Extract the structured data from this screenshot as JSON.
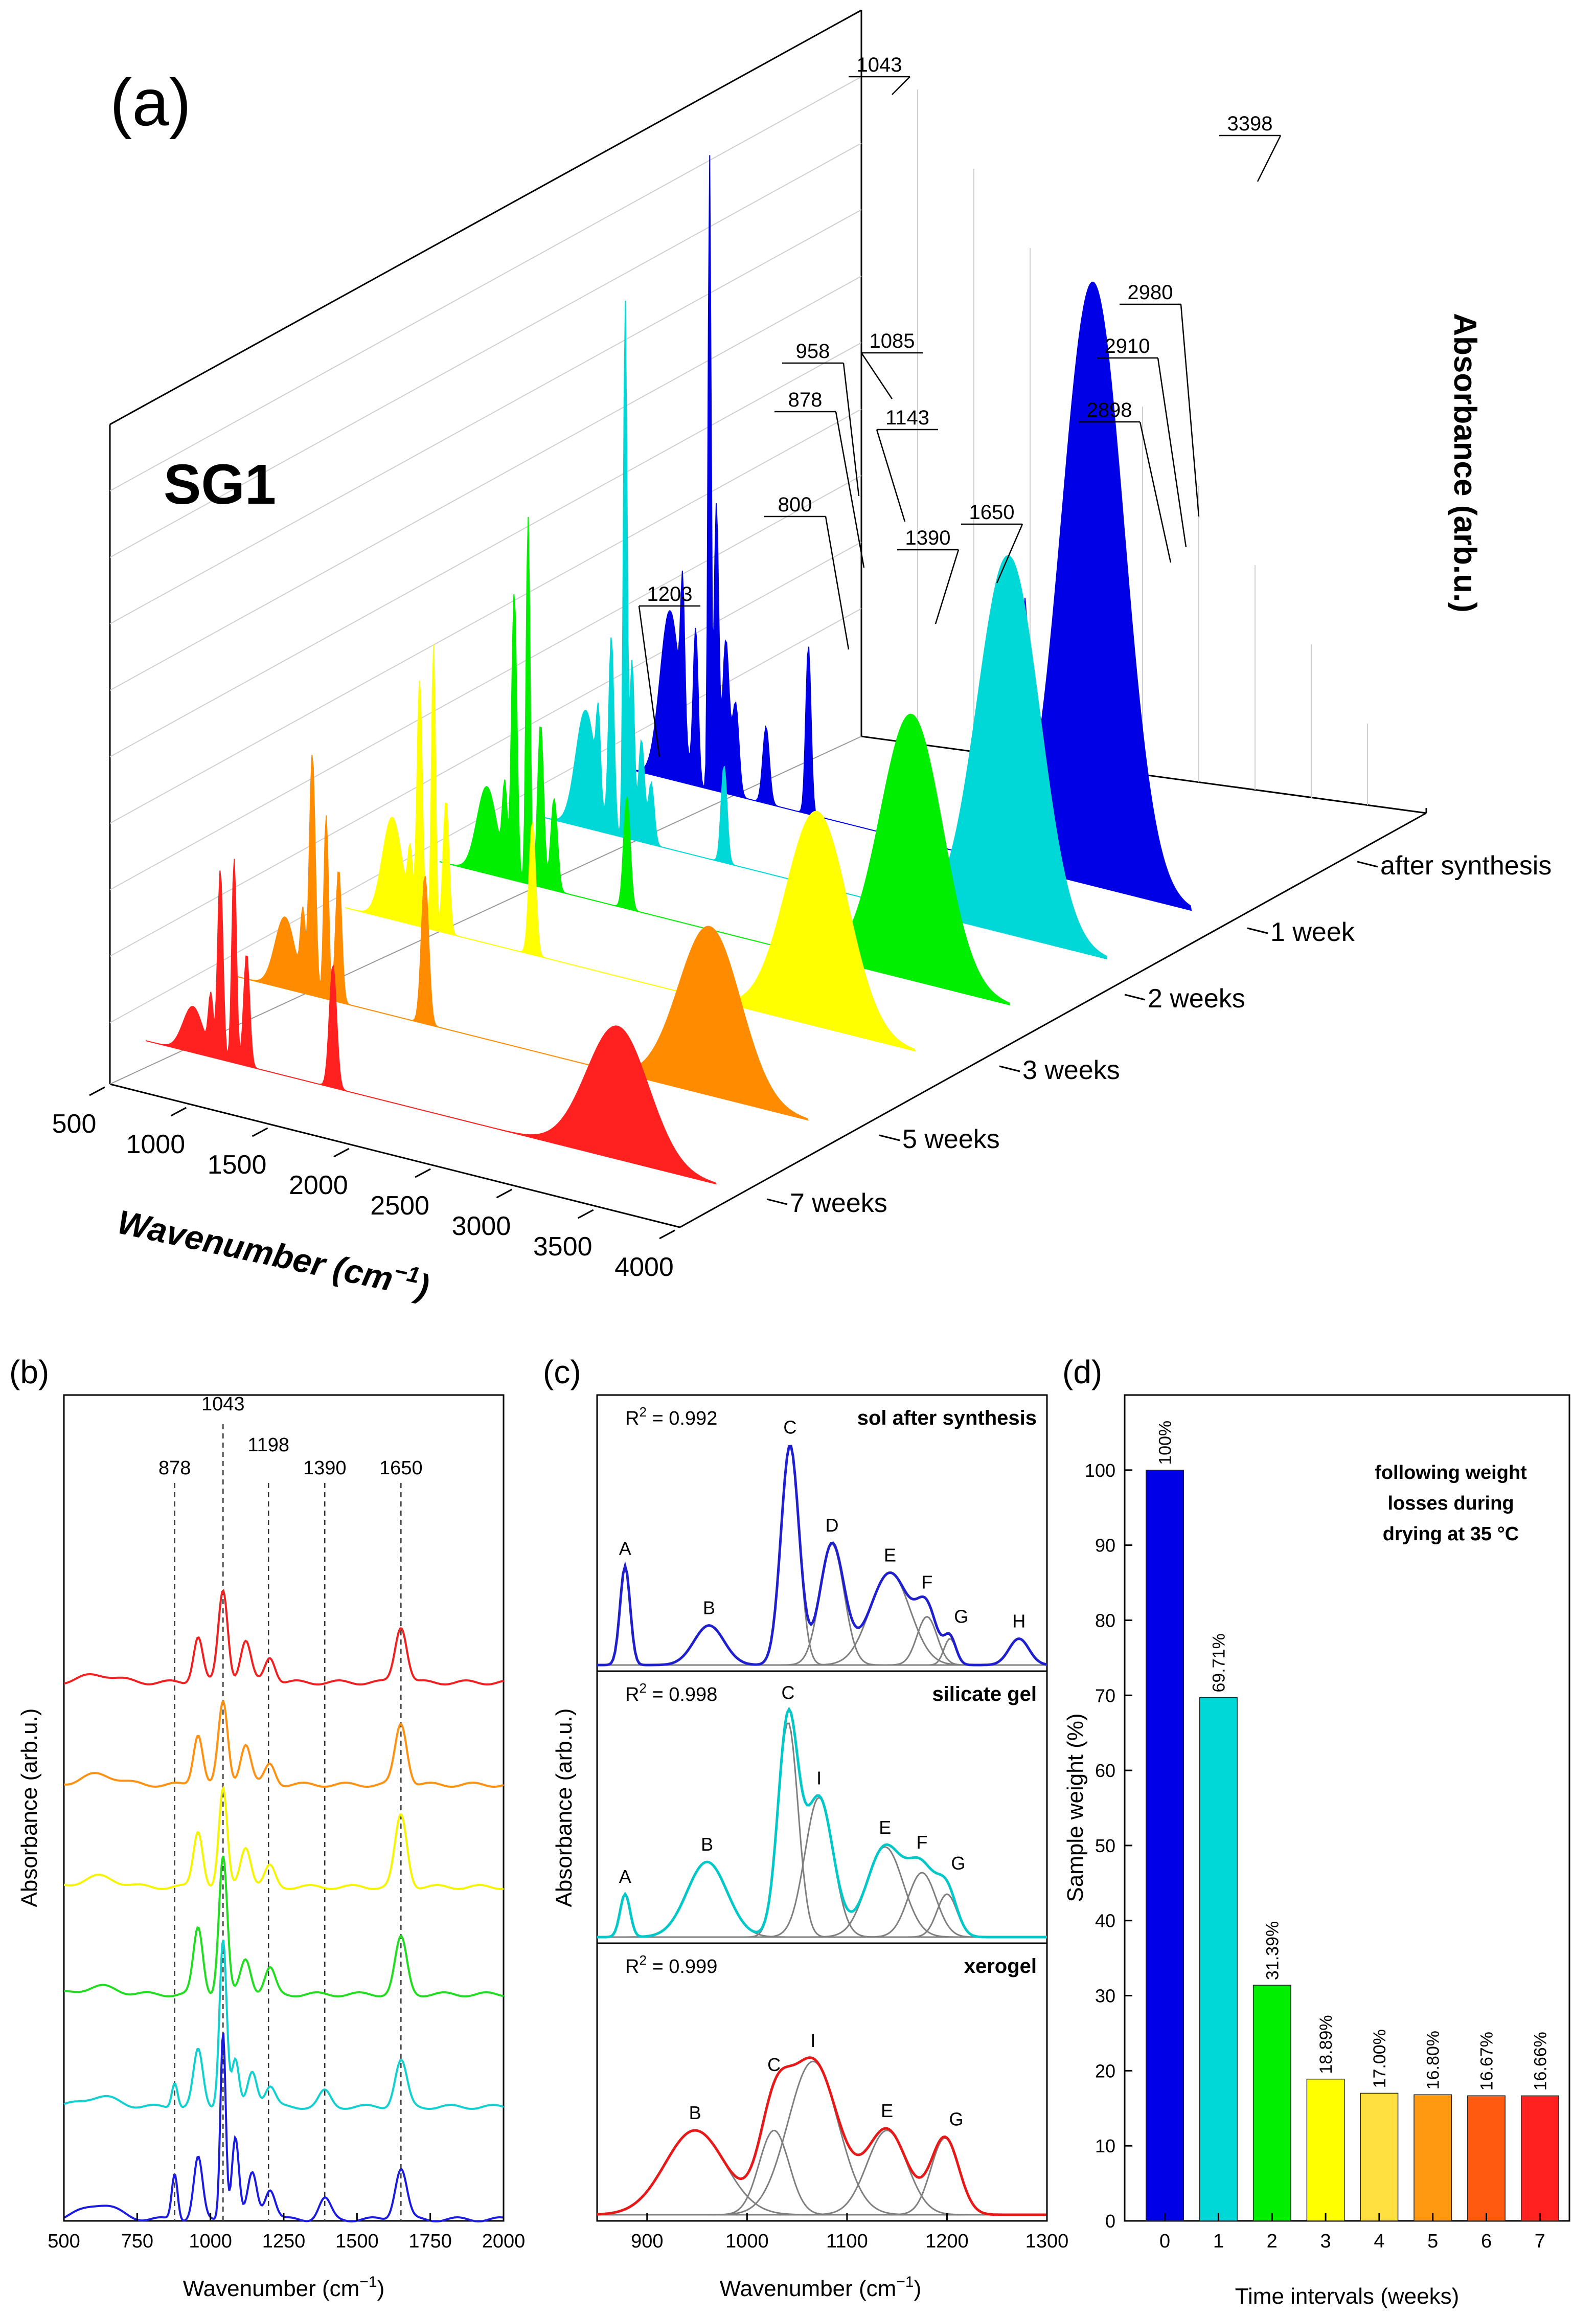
{
  "panel_a": {
    "tag": "(a)",
    "sample": "SG1",
    "x_axis_label": "Wavenumber (cm",
    "x_axis_sup": "−1",
    "x_axis_close": ")",
    "y_axis_label": "Absorbance (arb.u.)",
    "x_ticks": [
      "500",
      "1000",
      "1500",
      "2000",
      "2500",
      "3000",
      "3500",
      "4000"
    ],
    "series_labels": [
      "after synthesis",
      "1 week",
      "2 weeks",
      "3 weeks",
      "5 weeks",
      "7 weeks"
    ],
    "series_colors": [
      "#0000e6",
      "#00d8d8",
      "#00ee00",
      "#ffff00",
      "#ff8c00",
      "#ff2020"
    ],
    "peak_labels": [
      "1043",
      "958",
      "878",
      "800",
      "1085",
      "1143",
      "1390",
      "1650",
      "1203",
      "2898",
      "2910",
      "2980",
      "3398"
    ]
  },
  "panel_b": {
    "tag": "(b)",
    "x_label": "Wavenumber (cm",
    "x_sup": "−1",
    "x_close": ")",
    "y_label": "Absorbance (arb.u.)",
    "x_ticks": [
      "500",
      "750",
      "1000",
      "1250",
      "1500",
      "1750",
      "2000"
    ],
    "markers": [
      "878",
      "1043",
      "1198",
      "1390",
      "1650"
    ]
  },
  "panel_c": {
    "tag": "(c)",
    "x_label": "Wavenumber (cm",
    "x_sup": "−1",
    "x_close": ")",
    "y_label": "Absorbance (arb.u.)",
    "x_ticks": [
      "900",
      "1000",
      "1100",
      "1200",
      "1300"
    ],
    "subplots": [
      {
        "title": "sol after synthesis",
        "title_color": "#1f1fd0",
        "r2": "R",
        "r2_val": " = 0.992",
        "peaks": [
          "A",
          "B",
          "C",
          "D",
          "E",
          "F",
          "G",
          "H"
        ]
      },
      {
        "title": "silicate gel",
        "title_color": "#00c8c8",
        "r2": "R",
        "r2_val": " = 0.998",
        "peaks": [
          "A",
          "B",
          "C",
          "I",
          "E",
          "F",
          "G"
        ]
      },
      {
        "title": "xerogel",
        "title_color": "#e81818",
        "r2": "R",
        "r2_val": " = 0.999",
        "peaks": [
          "B",
          "C",
          "I",
          "E",
          "G"
        ]
      }
    ]
  },
  "panel_d": {
    "tag": "(d)",
    "note_lines": [
      "following weight",
      "losses during",
      "drying at 35 °C"
    ],
    "x_label": "Time intervals (weeks)",
    "y_label": "Sample weight (%)",
    "y_ticks": [
      "0",
      "10",
      "20",
      "30",
      "40",
      "50",
      "60",
      "70",
      "80",
      "90",
      "100"
    ]
  },
  "chart_data": [
    {
      "type": "area",
      "title": "(a) SG1",
      "xlabel": "Wavenumber (cm−1)",
      "ylabel": "Absorbance (arb.u.)",
      "xlim": [
        500,
        4000
      ],
      "series": [
        {
          "name": "after synthesis",
          "color": "#0000e6"
        },
        {
          "name": "1 week",
          "color": "#00d8d8"
        },
        {
          "name": "2 weeks",
          "color": "#00ee00"
        },
        {
          "name": "3 weeks",
          "color": "#ffff00"
        },
        {
          "name": "5 weeks",
          "color": "#ff8c00"
        },
        {
          "name": "7 weeks",
          "color": "#ff2020"
        }
      ],
      "peaks_cm-1": [
        800,
        878,
        958,
        1043,
        1085,
        1143,
        1203,
        1390,
        1650,
        2898,
        2910,
        2980,
        3398
      ]
    },
    {
      "type": "line",
      "title": "(b)",
      "xlabel": "Wavenumber (cm−1)",
      "ylabel": "Absorbance (arb.u.)",
      "xlim": [
        500,
        2000
      ],
      "markers_cm-1": [
        878,
        1043,
        1198,
        1390,
        1650
      ],
      "series_colors": [
        "#1a1ae0",
        "#10d0d0",
        "#20dd20",
        "#f5f500",
        "#ff9010",
        "#f02020"
      ]
    },
    {
      "type": "line",
      "title": "(c)",
      "xlabel": "Wavenumber (cm−1)",
      "ylabel": "Absorbance (arb.u.)",
      "xlim": [
        850,
        1300
      ],
      "fits": [
        {
          "name": "sol after synthesis",
          "r2": 0.992,
          "components": [
            {
              "label": "A",
              "x": 878
            },
            {
              "label": "B",
              "x": 962
            },
            {
              "label": "C",
              "x": 1043
            },
            {
              "label": "D",
              "x": 1085
            },
            {
              "label": "E",
              "x": 1143
            },
            {
              "label": "F",
              "x": 1180
            },
            {
              "label": "G",
              "x": 1203
            },
            {
              "label": "H",
              "x": 1272
            }
          ]
        },
        {
          "name": "silicate gel",
          "r2": 0.998,
          "components": [
            {
              "label": "A",
              "x": 878
            },
            {
              "label": "B",
              "x": 960
            },
            {
              "label": "C",
              "x": 1041
            },
            {
              "label": "I",
              "x": 1072
            },
            {
              "label": "E",
              "x": 1138
            },
            {
              "label": "F",
              "x": 1175
            },
            {
              "label": "G",
              "x": 1200
            }
          ]
        },
        {
          "name": "xerogel",
          "r2": 0.999,
          "components": [
            {
              "label": "B",
              "x": 948
            },
            {
              "label": "C",
              "x": 1027
            },
            {
              "label": "I",
              "x": 1066
            },
            {
              "label": "E",
              "x": 1140
            },
            {
              "label": "G",
              "x": 1198
            }
          ]
        }
      ]
    },
    {
      "type": "bar",
      "title": "(d)",
      "xlabel": "Time intervals (weeks)",
      "ylabel": "Sample weight (%)",
      "ylim": [
        0,
        110
      ],
      "categories": [
        "0",
        "1",
        "2",
        "3",
        "4",
        "5",
        "6",
        "7"
      ],
      "values": [
        100,
        69.71,
        31.39,
        18.89,
        17.0,
        16.8,
        16.67,
        16.66
      ],
      "value_labels": [
        "100%",
        "69.71%",
        "31.39%",
        "18.89%",
        "17.00%",
        "16.80%",
        "16.67%",
        "16.66%"
      ],
      "colors": [
        "#0000e6",
        "#00d8d8",
        "#00ee00",
        "#ffff00",
        "#ffe040",
        "#ff9a10",
        "#ff5a10",
        "#ff2020"
      ]
    }
  ]
}
